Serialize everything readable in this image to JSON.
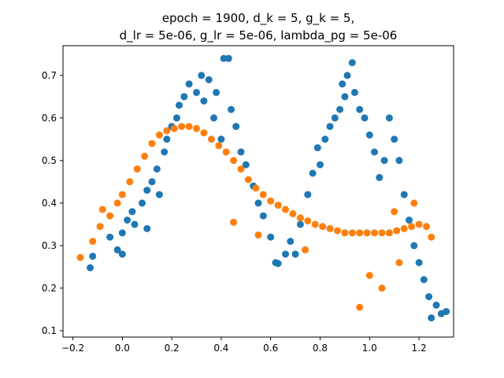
{
  "chart_data": {
    "type": "scatter",
    "title_lines": [
      "epoch = 1900, d_k = 5, g_k = 5,",
      "d_lr = 5e-06, g_lr = 5e-06, lambda_pg = 5e-06"
    ],
    "xlabel": "",
    "ylabel": "",
    "xlim": [
      -0.24,
      1.34
    ],
    "ylim": [
      0.085,
      0.77
    ],
    "x_ticks": [
      -0.2,
      0.0,
      0.2,
      0.4,
      0.6,
      0.8,
      1.0,
      1.2
    ],
    "x_tick_labels": [
      "−0.2",
      "0.0",
      "0.2",
      "0.4",
      "0.6",
      "0.8",
      "1.0",
      "1.2"
    ],
    "y_ticks": [
      0.1,
      0.2,
      0.3,
      0.4,
      0.5,
      0.6,
      0.7
    ],
    "y_tick_labels": [
      "0.1",
      "0.2",
      "0.3",
      "0.4",
      "0.5",
      "0.6",
      "0.7"
    ],
    "grid": false,
    "legend": false,
    "series": [
      {
        "color": "#1f77b4",
        "points": [
          [
            -0.13,
            0.248
          ],
          [
            -0.12,
            0.275
          ],
          [
            -0.05,
            0.32
          ],
          [
            -0.02,
            0.29
          ],
          [
            0.0,
            0.28
          ],
          [
            0.0,
            0.33
          ],
          [
            0.02,
            0.36
          ],
          [
            0.04,
            0.38
          ],
          [
            0.05,
            0.35
          ],
          [
            0.08,
            0.4
          ],
          [
            0.1,
            0.43
          ],
          [
            0.1,
            0.34
          ],
          [
            0.12,
            0.45
          ],
          [
            0.14,
            0.48
          ],
          [
            0.15,
            0.42
          ],
          [
            0.17,
            0.52
          ],
          [
            0.18,
            0.55
          ],
          [
            0.2,
            0.58
          ],
          [
            0.22,
            0.6
          ],
          [
            0.23,
            0.63
          ],
          [
            0.25,
            0.65
          ],
          [
            0.27,
            0.68
          ],
          [
            0.3,
            0.66
          ],
          [
            0.32,
            0.7
          ],
          [
            0.33,
            0.64
          ],
          [
            0.35,
            0.69
          ],
          [
            0.37,
            0.6
          ],
          [
            0.38,
            0.66
          ],
          [
            0.4,
            0.55
          ],
          [
            0.41,
            0.74
          ],
          [
            0.43,
            0.74
          ],
          [
            0.44,
            0.62
          ],
          [
            0.46,
            0.58
          ],
          [
            0.48,
            0.52
          ],
          [
            0.5,
            0.49
          ],
          [
            0.53,
            0.44
          ],
          [
            0.55,
            0.4
          ],
          [
            0.57,
            0.37
          ],
          [
            0.6,
            0.32
          ],
          [
            0.62,
            0.26
          ],
          [
            0.63,
            0.258
          ],
          [
            0.66,
            0.28
          ],
          [
            0.68,
            0.31
          ],
          [
            0.7,
            0.28
          ],
          [
            0.72,
            0.35
          ],
          [
            0.75,
            0.42
          ],
          [
            0.77,
            0.47
          ],
          [
            0.79,
            0.53
          ],
          [
            0.8,
            0.49
          ],
          [
            0.82,
            0.55
          ],
          [
            0.84,
            0.58
          ],
          [
            0.86,
            0.6
          ],
          [
            0.88,
            0.62
          ],
          [
            0.89,
            0.68
          ],
          [
            0.9,
            0.65
          ],
          [
            0.91,
            0.7
          ],
          [
            0.93,
            0.73
          ],
          [
            0.94,
            0.66
          ],
          [
            0.96,
            0.62
          ],
          [
            0.98,
            0.6
          ],
          [
            1.0,
            0.56
          ],
          [
            1.02,
            0.52
          ],
          [
            1.04,
            0.46
          ],
          [
            1.06,
            0.5
          ],
          [
            1.08,
            0.6
          ],
          [
            1.1,
            0.55
          ],
          [
            1.12,
            0.5
          ],
          [
            1.14,
            0.42
          ],
          [
            1.16,
            0.36
          ],
          [
            1.18,
            0.3
          ],
          [
            1.2,
            0.26
          ],
          [
            1.22,
            0.22
          ],
          [
            1.24,
            0.18
          ],
          [
            1.25,
            0.13
          ],
          [
            1.27,
            0.16
          ],
          [
            1.29,
            0.14
          ],
          [
            1.31,
            0.145
          ]
        ]
      },
      {
        "color": "#ff7f0e",
        "points": [
          [
            -0.17,
            0.272
          ],
          [
            -0.12,
            0.31
          ],
          [
            -0.09,
            0.345
          ],
          [
            -0.08,
            0.385
          ],
          [
            -0.05,
            0.37
          ],
          [
            -0.02,
            0.4
          ],
          [
            0.0,
            0.42
          ],
          [
            0.03,
            0.45
          ],
          [
            0.06,
            0.48
          ],
          [
            0.09,
            0.51
          ],
          [
            0.12,
            0.54
          ],
          [
            0.15,
            0.56
          ],
          [
            0.18,
            0.57
          ],
          [
            0.21,
            0.575
          ],
          [
            0.24,
            0.58
          ],
          [
            0.27,
            0.58
          ],
          [
            0.3,
            0.575
          ],
          [
            0.33,
            0.565
          ],
          [
            0.36,
            0.55
          ],
          [
            0.39,
            0.535
          ],
          [
            0.42,
            0.52
          ],
          [
            0.45,
            0.5
          ],
          [
            0.48,
            0.48
          ],
          [
            0.51,
            0.455
          ],
          [
            0.54,
            0.435
          ],
          [
            0.57,
            0.42
          ],
          [
            0.6,
            0.405
          ],
          [
            0.63,
            0.395
          ],
          [
            0.66,
            0.385
          ],
          [
            0.69,
            0.375
          ],
          [
            0.72,
            0.365
          ],
          [
            0.75,
            0.358
          ],
          [
            0.78,
            0.35
          ],
          [
            0.81,
            0.345
          ],
          [
            0.84,
            0.34
          ],
          [
            0.87,
            0.335
          ],
          [
            0.9,
            0.33
          ],
          [
            0.93,
            0.33
          ],
          [
            0.96,
            0.33
          ],
          [
            0.99,
            0.33
          ],
          [
            1.02,
            0.33
          ],
          [
            1.05,
            0.33
          ],
          [
            1.08,
            0.33
          ],
          [
            1.11,
            0.335
          ],
          [
            1.14,
            0.34
          ],
          [
            1.17,
            0.345
          ],
          [
            1.2,
            0.35
          ],
          [
            1.23,
            0.345
          ],
          [
            1.25,
            0.32
          ],
          [
            0.45,
            0.355
          ],
          [
            0.55,
            0.325
          ],
          [
            0.74,
            0.29
          ],
          [
            1.0,
            0.23
          ],
          [
            0.96,
            0.155
          ],
          [
            1.05,
            0.2
          ],
          [
            1.12,
            0.26
          ],
          [
            1.18,
            0.4
          ],
          [
            1.1,
            0.38
          ]
        ]
      }
    ]
  }
}
